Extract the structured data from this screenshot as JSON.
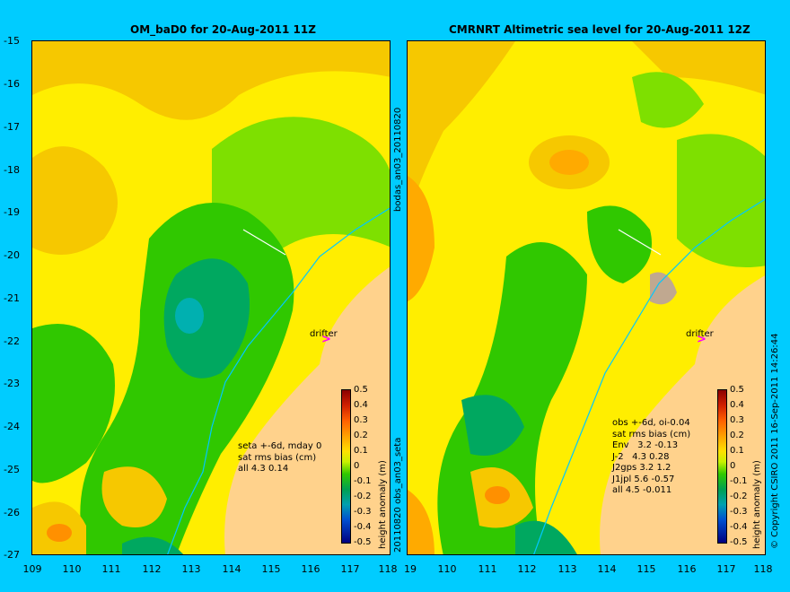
{
  "left_title": "OM_baD0 for 20-Aug-2011 11Z",
  "right_title": "CMRNRT Altimetric sea level  for 20-Aug-2011 12Z",
  "y_ticks": [
    "-15",
    "-16",
    "-17",
    "-18",
    "-19",
    "-20",
    "-21",
    "-22",
    "-23",
    "-24",
    "-25",
    "-26",
    "-27"
  ],
  "x_ticks": [
    "109",
    "110",
    "111",
    "112",
    "113",
    "114",
    "115",
    "116",
    "117",
    "118"
  ],
  "x_ticks_right": [
    "19",
    "110",
    "111",
    "112",
    "113",
    "114",
    "115",
    "116",
    "117",
    "118"
  ],
  "vertical_top": "bodas_an03_20110820",
  "vertical_bottom": "20110820 obs_an03_seta",
  "copyright": "© Copyright CSIRO 2011   16-Sep-2011 14:26:44",
  "drifter_label": "drifter",
  "colorbar": {
    "ticks": [
      "0.5",
      "0.4",
      "0.3",
      "0.2",
      "0.1",
      "0",
      "-0.1",
      "-0.2",
      "-0.3",
      "-0.4",
      "-0.5"
    ],
    "label": "height anomaly (m)"
  },
  "left_info": "seta +-6d, mday 0\nsat rms bias (cm)\nall 4.3 0.14",
  "right_info": "obs +-6d, oi-0.04\nsat rms bias (cm)\nEnv   3.2 -0.13\nJ-2   4.3 0.28\nJ2gps 3.2 1.2\nJ1jpl 5.6 -0.57\nall 4.5 -0.011",
  "colors": {
    "background": "#00ccff",
    "land": "#ffd28c",
    "drifter_arrow": "#ff00ff",
    "track": "#00c8ff"
  }
}
